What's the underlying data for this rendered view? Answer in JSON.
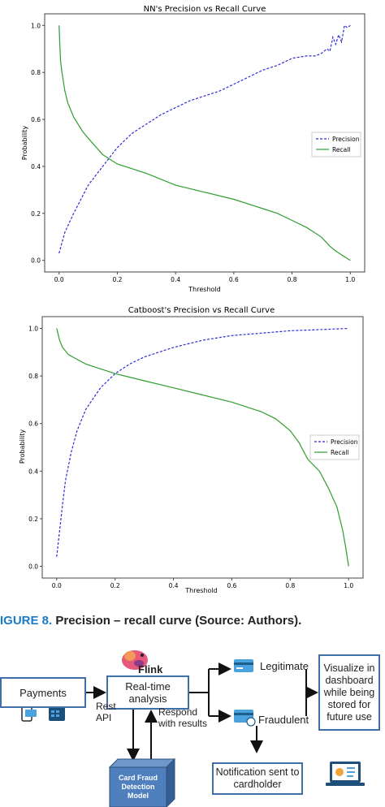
{
  "chart_data": [
    {
      "type": "line",
      "title": "NN's Precision vs Recall Curve",
      "xlabel": "Threshold",
      "ylabel": "Probability",
      "xlim": [
        0,
        1
      ],
      "ylim": [
        0,
        1
      ],
      "xticks": [
        "0.0",
        "0.2",
        "0.4",
        "0.6",
        "0.8",
        "1.0"
      ],
      "yticks": [
        "0.0",
        "0.2",
        "0.4",
        "0.6",
        "0.8",
        "1.0"
      ],
      "legend_position": "right",
      "series": [
        {
          "name": "Precision",
          "color": "#2b2bd6",
          "style": "dashed",
          "x": [
            0.0,
            0.02,
            0.05,
            0.1,
            0.15,
            0.2,
            0.25,
            0.3,
            0.35,
            0.4,
            0.45,
            0.5,
            0.55,
            0.6,
            0.65,
            0.7,
            0.75,
            0.8,
            0.85,
            0.88,
            0.9,
            0.92,
            0.93,
            0.94,
            0.95,
            0.96,
            0.97,
            0.98,
            0.99,
            1.0
          ],
          "y": [
            0.03,
            0.12,
            0.2,
            0.32,
            0.4,
            0.48,
            0.54,
            0.58,
            0.62,
            0.65,
            0.68,
            0.7,
            0.72,
            0.75,
            0.78,
            0.81,
            0.83,
            0.86,
            0.87,
            0.87,
            0.88,
            0.9,
            0.89,
            0.95,
            0.92,
            0.96,
            0.93,
            1.0,
            0.99,
            1.0
          ]
        },
        {
          "name": "Recall",
          "color": "#2f9e2f",
          "style": "solid",
          "x": [
            0.0,
            0.005,
            0.01,
            0.02,
            0.03,
            0.05,
            0.08,
            0.1,
            0.15,
            0.2,
            0.3,
            0.4,
            0.5,
            0.6,
            0.7,
            0.75,
            0.8,
            0.85,
            0.9,
            0.93,
            0.95,
            0.98,
            1.0
          ],
          "y": [
            1.0,
            0.85,
            0.8,
            0.72,
            0.67,
            0.61,
            0.55,
            0.52,
            0.45,
            0.41,
            0.37,
            0.32,
            0.29,
            0.26,
            0.22,
            0.2,
            0.17,
            0.14,
            0.1,
            0.06,
            0.04,
            0.015,
            0.0
          ]
        }
      ]
    },
    {
      "type": "line",
      "title": "Catboost's Precision vs Recall Curve",
      "xlabel": "Threshold",
      "ylabel": "Probability",
      "xlim": [
        0,
        1
      ],
      "ylim": [
        0,
        1
      ],
      "xticks": [
        "0.0",
        "0.2",
        "0.4",
        "0.6",
        "0.8",
        "1.0"
      ],
      "yticks": [
        "0.0",
        "0.2",
        "0.4",
        "0.6",
        "0.8",
        "1.0"
      ],
      "legend_position": "right",
      "series": [
        {
          "name": "Precision",
          "color": "#2b2bd6",
          "style": "dashed",
          "x": [
            0.0,
            0.01,
            0.02,
            0.03,
            0.05,
            0.07,
            0.1,
            0.15,
            0.2,
            0.25,
            0.3,
            0.4,
            0.5,
            0.6,
            0.7,
            0.8,
            0.9,
            1.0
          ],
          "y": [
            0.04,
            0.15,
            0.26,
            0.36,
            0.48,
            0.57,
            0.66,
            0.75,
            0.81,
            0.85,
            0.88,
            0.92,
            0.95,
            0.97,
            0.98,
            0.99,
            0.995,
            1.0
          ]
        },
        {
          "name": "Recall",
          "color": "#2f9e2f",
          "style": "solid",
          "x": [
            0.0,
            0.01,
            0.02,
            0.04,
            0.07,
            0.1,
            0.15,
            0.2,
            0.3,
            0.4,
            0.5,
            0.6,
            0.7,
            0.75,
            0.8,
            0.83,
            0.86,
            0.9,
            0.93,
            0.96,
            0.98,
            0.99,
            1.0
          ],
          "y": [
            1.0,
            0.95,
            0.92,
            0.89,
            0.87,
            0.85,
            0.83,
            0.81,
            0.78,
            0.75,
            0.72,
            0.69,
            0.65,
            0.62,
            0.57,
            0.52,
            0.45,
            0.4,
            0.33,
            0.25,
            0.15,
            0.08,
            0.0
          ]
        }
      ]
    }
  ],
  "caption": {
    "label": "IGURE 8.",
    "text": "Precision – recall curve (Source: Authors)."
  },
  "diagram": {
    "payments": "Payments",
    "flink_logo_text": "Flink",
    "analysis": "Real-time analysis",
    "legitimate": "Legitimate",
    "fraudulent": "Fraudulent",
    "visualize": "Visualize in dashboard while being stored for future use",
    "rest_api": "Rest API",
    "respond": "Respond with results",
    "model": "Card Fraud Detection Model",
    "notification": "Notification sent to cardholder"
  }
}
